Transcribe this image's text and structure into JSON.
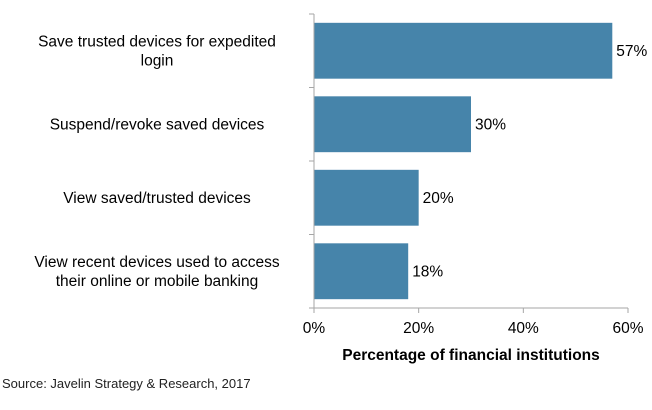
{
  "chart_data": {
    "type": "bar",
    "orientation": "horizontal",
    "title": "",
    "categories": [
      [
        "Save trusted devices for expedited",
        "login"
      ],
      [
        "Suspend/revoke saved devices"
      ],
      [
        "View saved/trusted devices"
      ],
      [
        "View recent devices used to access",
        "their online or mobile banking"
      ]
    ],
    "values": [
      57,
      30,
      20,
      18
    ],
    "value_labels": [
      "57%",
      "30%",
      "20%",
      "18%"
    ],
    "xlabel": "Percentage of financial institutions",
    "ylabel": "",
    "xlim": [
      0,
      60
    ],
    "xticks": [
      0,
      20,
      40,
      60
    ],
    "xtick_labels": [
      "0%",
      "20%",
      "40%",
      "60%"
    ],
    "grid": false,
    "legend": "none",
    "bar_color": "#4684aa",
    "axis_color": "#a6a6a6"
  },
  "source": "Source: Javelin Strategy & Research, 2017"
}
